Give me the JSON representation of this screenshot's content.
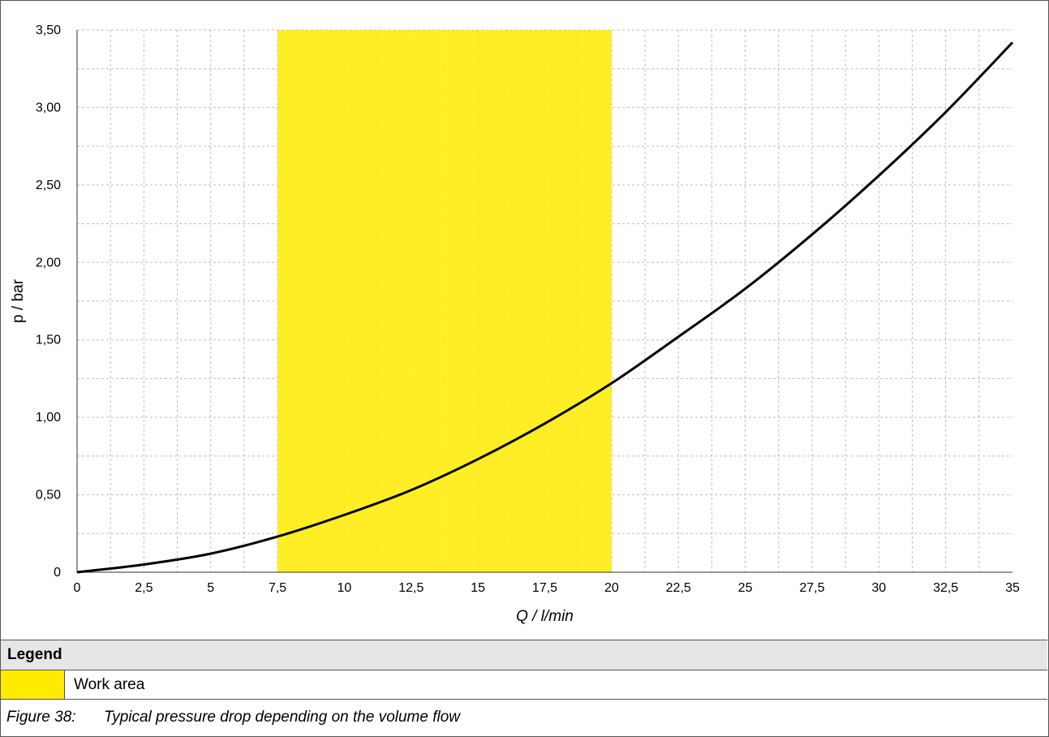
{
  "chart_data": {
    "type": "line",
    "xlabel": "Q / l/min",
    "ylabel": "p / bar",
    "xlim": [
      0,
      35
    ],
    "ylim": [
      0,
      3.5
    ],
    "x_ticks": [
      "0",
      "2,5",
      "5",
      "7,5",
      "10",
      "12,5",
      "15",
      "17,5",
      "20",
      "22,5",
      "25",
      "27,5",
      "30",
      "32,5",
      "35"
    ],
    "y_ticks": [
      "0",
      "0,50",
      "1,00",
      "1,50",
      "2,00",
      "2,50",
      "3,00",
      "3,50"
    ],
    "grid": true,
    "series": [
      {
        "color": "#000000",
        "x": [
          0,
          2.5,
          5,
          7.5,
          10,
          12.5,
          15,
          17.5,
          20,
          22.5,
          25,
          27.5,
          30,
          32.5,
          35
        ],
        "y": [
          0,
          0.05,
          0.12,
          0.23,
          0.37,
          0.53,
          0.73,
          0.96,
          1.22,
          1.52,
          1.83,
          2.18,
          2.56,
          2.97,
          3.42
        ]
      }
    ],
    "highlight_band": {
      "x_start": 7.5,
      "x_end": 20,
      "color": "#FFEB00",
      "label": "Work area"
    }
  },
  "legend": {
    "title": "Legend",
    "items": [
      {
        "label": "Work area",
        "color": "#FFEB00"
      }
    ]
  },
  "caption": {
    "number": "Figure 38:",
    "text": "Typical pressure drop depending on the volume flow"
  }
}
